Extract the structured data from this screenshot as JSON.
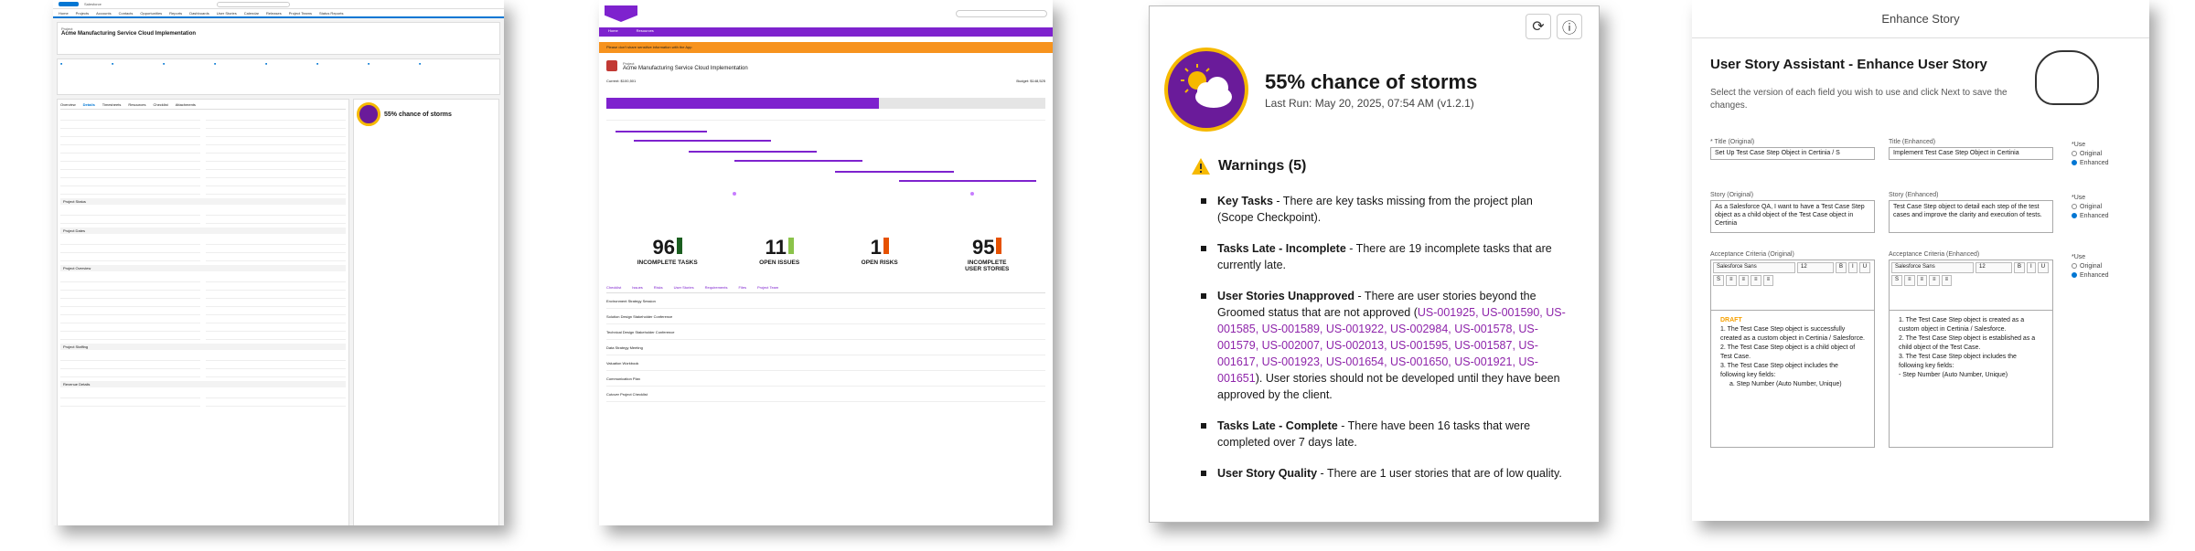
{
  "p1": {
    "app": "Salesforce",
    "record_type": "Project",
    "record_title": "Acme Manufacturing Service Cloud Implementation",
    "nav": [
      "Home",
      "Projects",
      "Accounts",
      "Contacts",
      "Opportunities",
      "Reports",
      "Dashboards",
      "User Stories",
      "Calendar",
      "Releases",
      "Project Teams",
      "Status Reports"
    ],
    "tabs": [
      "Overview",
      "Details",
      "Timesheets",
      "Resources",
      "Checklist",
      "Attachments"
    ],
    "weather_title": "55% chance of storms",
    "section_labels": [
      "Project Status",
      "Project Dates",
      "Project Overview",
      "Project Staffing",
      "Revenue Details"
    ]
  },
  "p2": {
    "nav": [
      "Home",
      "Resources"
    ],
    "alert": "Please don't share sensitive information with the App",
    "project_type": "Project",
    "project_title": "Acme Manufacturing Service Cloud Implementation",
    "budget_current": "Current: $100,501",
    "budget_total": "Budget: $148,525",
    "progress": 0.62,
    "stats": [
      {
        "num": "96",
        "label": "INCOMPLETE TASKS",
        "color": "#1b5e20"
      },
      {
        "num": "11",
        "label": "OPEN ISSUES",
        "color": "#8bc34a"
      },
      {
        "num": "1",
        "label": "OPEN RISKS",
        "color": "#e65100"
      },
      {
        "num": "95",
        "label": "INCOMPLETE USER STORIES",
        "color": "#e65100"
      }
    ],
    "tabs": [
      "Checklist",
      "Issues",
      "Risks",
      "User Stories",
      "Requirements",
      "Files",
      "Project Team"
    ],
    "rows": [
      "Environment Strategy Session",
      "Solution Design Stakeholder Conference",
      "Technical Design Stakeholder Conference",
      "Data Strategy Meeting",
      "Valuation Workbook",
      "Communication Plan",
      "Cutover Project Checklist"
    ]
  },
  "p3": {
    "title": "55% chance of storms",
    "last_run": "Last Run: May 20, 2025, 07:54 AM (v1.2.1)",
    "warnings_header": "Warnings (5)",
    "items": [
      {
        "head": "Key Tasks",
        "text": " - There are key tasks missing from the project plan (Scope Checkpoint)."
      },
      {
        "head": "Tasks Late - Incomplete",
        "text": " - There are 19 incomplete tasks that are currently late."
      },
      {
        "head": "User Stories Unapproved",
        "text": " - There are user stories beyond the Groomed status that are not approved (",
        "ids": "US-001925, US-001590, US-001585, US-001589, US-001922, US-002984, US-001578, US-001579, US-002007, US-002013, US-001595, US-001587, US-001617, US-001923, US-001654, US-001650, US-001921, US-001651",
        "tail": "). User stories should not be developed until they have been approved by the client."
      },
      {
        "head": "Tasks Late - Complete",
        "text": " - There have been 16 tasks that were completed over 7 days late."
      },
      {
        "head": "User Story Quality",
        "text": " - There are 1 user stories that are of low quality."
      }
    ]
  },
  "p4": {
    "modal_title": "Enhance Story",
    "heading": "User Story Assistant - Enhance User Story",
    "description": "Select the version of each field you wish to use and click Next to save the changes.",
    "title_orig_label": "* Title (Original)",
    "title_orig": "Set Up Test Case Step Object in Certinia / S",
    "title_enh_label": "Title (Enhanced)",
    "title_enh": "Implement Test Case Step Object in Certinia",
    "story_orig_label": "Story (Original)",
    "story_orig": "As a Salesforce QA, I want to have a Test Case Step object as a child object of the Test Case object in Certinia",
    "story_enh_label": "Story (Enhanced)",
    "story_enh": "Test Case Step object to detail each step of the test cases and improve the clarity and execution of tests.",
    "ac_orig_label": "Acceptance Criteria (Original)",
    "ac_enh_label": "Acceptance Criteria (Enhanced)",
    "font": "Salesforce Sans",
    "size": "12",
    "draft": "DRAFT",
    "ac_orig": [
      "1. The Test Case Step object is successfully created as a custom object in Certinia / Salesforce.",
      "2. The Test Case Step object is a child object of Test Case.",
      "3. The Test Case Step object includes the following key fields:",
      "a. Step Number (Auto Number, Unique)"
    ],
    "ac_enh": [
      "1. The Test Case Step object is created as a custom object in Certinia / Salesforce.",
      "2. The Test Case Step object is established as a child object of the Test Case.",
      "3. The Test Case Step object includes the following key fields:",
      "- Step Number (Auto Number, Unique)"
    ],
    "use_label": "*Use",
    "opt_original": "Original",
    "opt_enhanced": "Enhanced"
  }
}
